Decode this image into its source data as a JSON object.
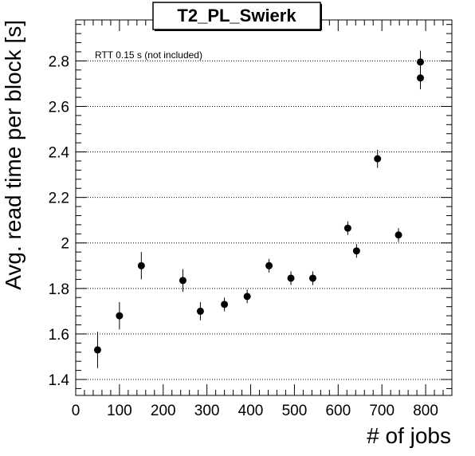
{
  "chart_data": {
    "type": "scatter",
    "title": "T2_PL_Swierk",
    "xlabel": "# of jobs",
    "ylabel": "Avg. read time per block [s]",
    "annotation": "RTT 0.15 s (not included)",
    "xlim": [
      0,
      860
    ],
    "ylim": [
      1.33,
      2.98
    ],
    "x_ticks": [
      0,
      100,
      200,
      300,
      400,
      500,
      600,
      700,
      800
    ],
    "y_ticks": [
      1.4,
      1.6,
      1.8,
      2.0,
      2.2,
      2.4,
      2.6,
      2.8
    ],
    "x_tick_labels": [
      "0",
      "100",
      "200",
      "300",
      "400",
      "500",
      "600",
      "700",
      "800"
    ],
    "y_tick_labels": [
      "1.4",
      "1.6",
      "1.8",
      "2",
      "2.2",
      "2.4",
      "2.6",
      "2.8"
    ],
    "grid": "horizontal dotted",
    "marker_color": "#000000",
    "points": [
      {
        "x": 50,
        "y": 1.53,
        "err": 0.08
      },
      {
        "x": 100,
        "y": 1.68,
        "err": 0.06
      },
      {
        "x": 150,
        "y": 1.9,
        "err": 0.06
      },
      {
        "x": 245,
        "y": 1.835,
        "err": 0.05
      },
      {
        "x": 285,
        "y": 1.7,
        "err": 0.04
      },
      {
        "x": 340,
        "y": 1.73,
        "err": 0.03
      },
      {
        "x": 392,
        "y": 1.765,
        "err": 0.03
      },
      {
        "x": 442,
        "y": 1.9,
        "err": 0.03
      },
      {
        "x": 492,
        "y": 1.845,
        "err": 0.03
      },
      {
        "x": 542,
        "y": 1.845,
        "err": 0.03
      },
      {
        "x": 622,
        "y": 2.065,
        "err": 0.03
      },
      {
        "x": 642,
        "y": 1.965,
        "err": 0.03
      },
      {
        "x": 690,
        "y": 2.37,
        "err": 0.04
      },
      {
        "x": 738,
        "y": 2.035,
        "err": 0.03
      },
      {
        "x": 788,
        "y": 2.795,
        "err": 0.05
      },
      {
        "x": 788,
        "y": 2.725,
        "err": 0.05
      }
    ]
  }
}
